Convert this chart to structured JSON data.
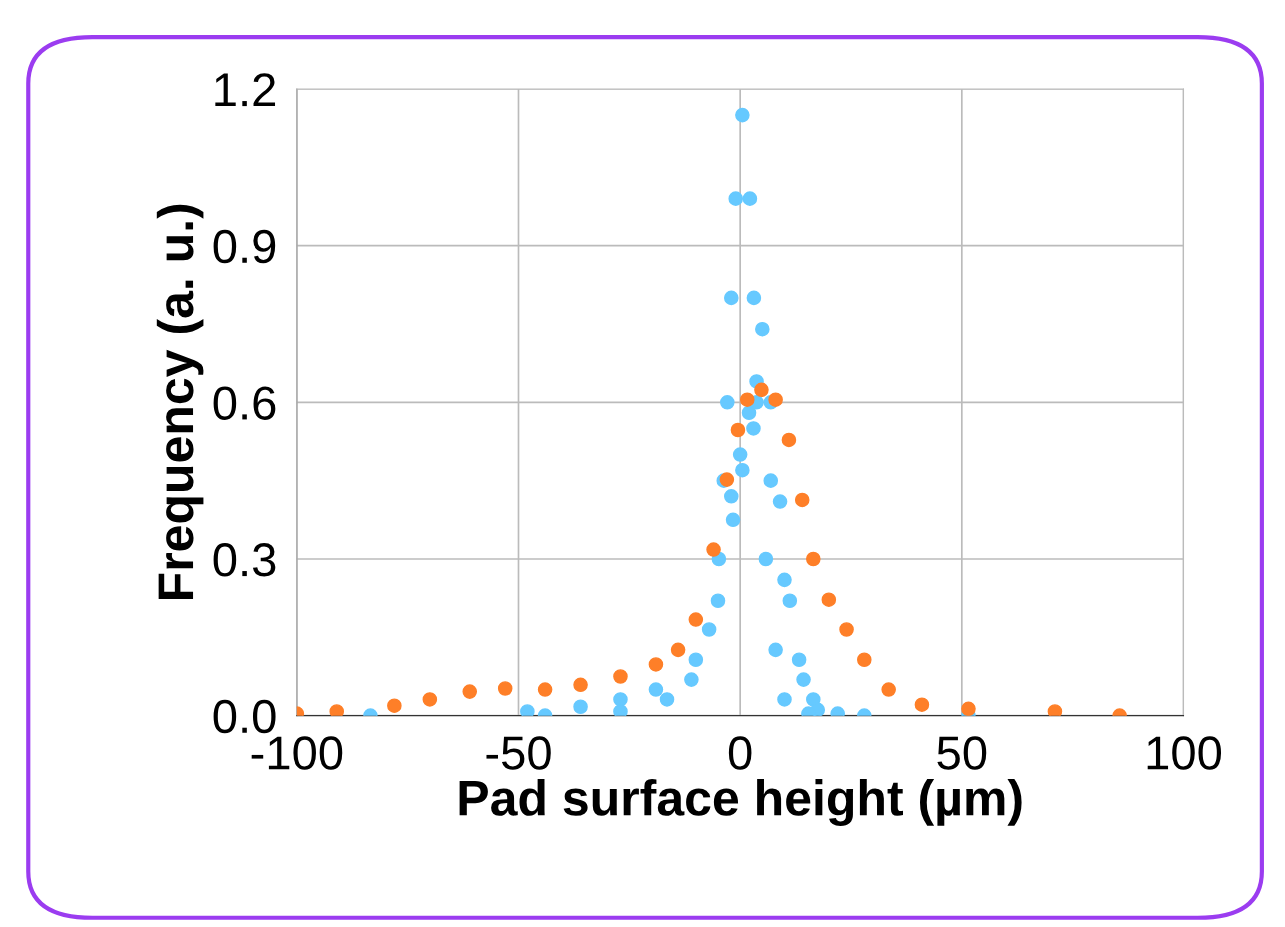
{
  "chart_data": {
    "type": "scatter",
    "xlabel": "Pad surface height (µm)",
    "ylabel": "Frequency (a. u.)",
    "xlim": [
      -100,
      100
    ],
    "xticks": [
      -100,
      -50,
      0,
      50,
      100
    ],
    "ylim": [
      0,
      1.2
    ],
    "yticks": [
      {
        "value": 0,
        "label": "0.0"
      },
      {
        "value": 0.3,
        "label": "0.3"
      },
      {
        "value": 0.6,
        "label": "0.6"
      },
      {
        "value": 0.9,
        "label": "0.9"
      },
      {
        "value": 1.2,
        "label": "1.2"
      }
    ],
    "grid": true,
    "marker": "circle",
    "series": [
      {
        "color": "#fe7f28",
        "x": [
          -100,
          -91,
          -78,
          -70,
          -61,
          -53,
          -44,
          -36,
          -27,
          -19,
          -14,
          -10,
          -6,
          -3,
          -0.5,
          1.6,
          4.8,
          8,
          11,
          14,
          16.5,
          20,
          24,
          28,
          33.5,
          41,
          51.5,
          71,
          85.6
        ],
        "values": [
          0.004,
          0.008,
          0.019,
          0.031,
          0.046,
          0.052,
          0.05,
          0.059,
          0.075,
          0.098,
          0.126,
          0.184,
          0.318,
          0.452,
          0.547,
          0.605,
          0.624,
          0.605,
          0.528,
          0.413,
          0.3,
          0.222,
          0.165,
          0.107,
          0.05,
          0.021,
          0.013,
          0.008,
          0.0
        ]
      },
      {
        "color": "#66c9ff",
        "x": [
          -83.4,
          -44,
          -27,
          -16.5,
          -11,
          -7,
          -4.8,
          -3.7,
          -2.9,
          -2,
          -1,
          0.5,
          2.2,
          3.1,
          3.7,
          5.8,
          8,
          10,
          15.4,
          51.5
        ],
        "values": [
          0.0,
          0.0,
          0.008,
          0.031,
          0.069,
          0.165,
          0.3,
          0.45,
          0.6,
          0.8,
          0.99,
          1.15,
          0.99,
          0.8,
          0.6,
          0.3,
          0.126,
          0.031,
          0.004,
          0.0
        ]
      },
      {
        "color": "#66c9ff",
        "x": [
          -2,
          0,
          2,
          3.7,
          5,
          6.9,
          9,
          11.2,
          14.3,
          17.5,
          28
        ],
        "values": [
          0.42,
          0.5,
          0.58,
          0.64,
          0.74,
          0.6,
          0.41,
          0.22,
          0.069,
          0.011,
          0.0
        ]
      },
      {
        "color": "#66c9ff",
        "x": [
          -48,
          -36,
          -27,
          -19,
          -10,
          -5,
          -1.6,
          0.5,
          3,
          6.9,
          10,
          13.3,
          16.5,
          22
        ],
        "values": [
          0.008,
          0.017,
          0.031,
          0.05,
          0.107,
          0.22,
          0.375,
          0.47,
          0.55,
          0.45,
          0.26,
          0.107,
          0.031,
          0.004
        ]
      }
    ]
  }
}
